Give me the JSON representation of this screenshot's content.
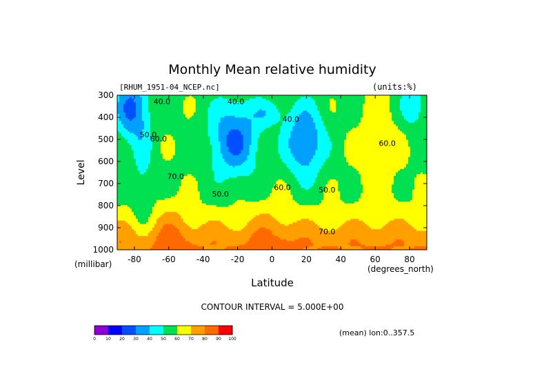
{
  "chart_data": {
    "type": "heatmap",
    "title": "Monthly Mean relative humidity",
    "dataset_label": "[RHUM_1951-04_NCEP.nc]",
    "units_label": "(units:%)",
    "xlabel": "Latitude",
    "ylabel": "Level",
    "y_units": "(millibar)",
    "x_units": "(degrees_north)",
    "footer_note": "CONTOUR INTERVAL = 5.000E+00",
    "mean_note": "(mean) lon:0..357.5",
    "x_range": [
      -90,
      90
    ],
    "y_range": [
      1000,
      300
    ],
    "x_ticks": [
      -80,
      -60,
      -40,
      -20,
      0,
      20,
      40,
      60,
      80
    ],
    "y_ticks": [
      300,
      400,
      500,
      600,
      700,
      800,
      900,
      1000
    ],
    "x_tick_labels": [
      "-80",
      "-60",
      "-40",
      "-20",
      "0",
      "20",
      "40",
      "60",
      "80"
    ],
    "y_tick_labels": [
      "300",
      "400",
      "500",
      "600",
      "700",
      "800",
      "900",
      "1000"
    ],
    "contour_labels": [
      {
        "text": "40.0",
        "lat": -64,
        "lev": 340
      },
      {
        "text": "40.0",
        "lat": -21,
        "lev": 340
      },
      {
        "text": "40.0",
        "lat": 11,
        "lev": 420
      },
      {
        "text": "50.0",
        "lat": -72,
        "lev": 490
      },
      {
        "text": "60.0",
        "lat": -66,
        "lev": 510
      },
      {
        "text": "70.0",
        "lat": -56,
        "lev": 680
      },
      {
        "text": "50.0",
        "lat": -30,
        "lev": 760
      },
      {
        "text": "60.0",
        "lat": 6,
        "lev": 730
      },
      {
        "text": "50.0",
        "lat": 32,
        "lev": 740
      },
      {
        "text": "70.0",
        "lat": 32,
        "lev": 930
      },
      {
        "text": "60.0",
        "lat": 67,
        "lev": 530
      }
    ],
    "colorbar": {
      "levels": [
        0,
        10,
        20,
        30,
        40,
        50,
        60,
        70,
        80,
        90,
        100
      ],
      "level_labels": [
        "0",
        "10",
        "20",
        "30",
        "40",
        "50",
        "60",
        "70",
        "80",
        "90",
        "100"
      ],
      "colors": [
        "#8c00d4",
        "#0000ff",
        "#0050ff",
        "#00a0ff",
        "#00ffff",
        "#00e050",
        "#ffff00",
        "#ffa000",
        "#ff6a00",
        "#ff0000"
      ]
    },
    "grid": false
  }
}
